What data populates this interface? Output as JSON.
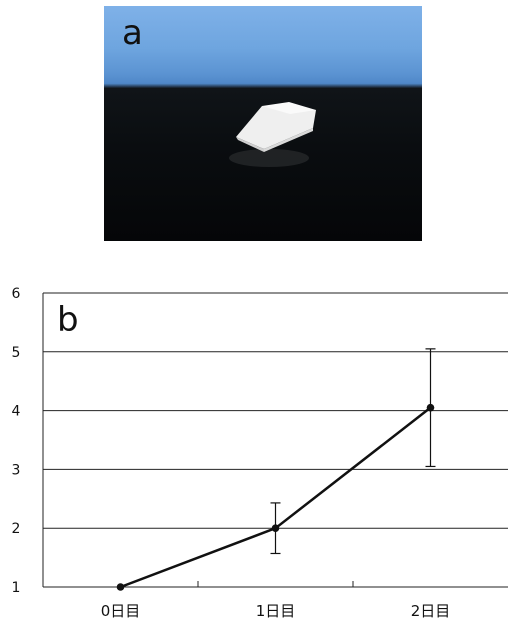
{
  "photo": {
    "label": "a",
    "object_icon": "white-prism-block"
  },
  "chart_data": {
    "type": "line",
    "panel_label": "b",
    "title": "",
    "xlabel": "",
    "ylabel": "",
    "categories": [
      "0日目",
      "1日目",
      "2日目"
    ],
    "series": [
      {
        "values": [
          1.0,
          2.0,
          4.05
        ],
        "error": [
          0.0,
          0.43,
          1.0
        ]
      }
    ],
    "ylim": [
      1,
      6
    ],
    "yticks": [
      1,
      2,
      3,
      4,
      5,
      6
    ],
    "grid": true,
    "line_color": "#111111"
  }
}
